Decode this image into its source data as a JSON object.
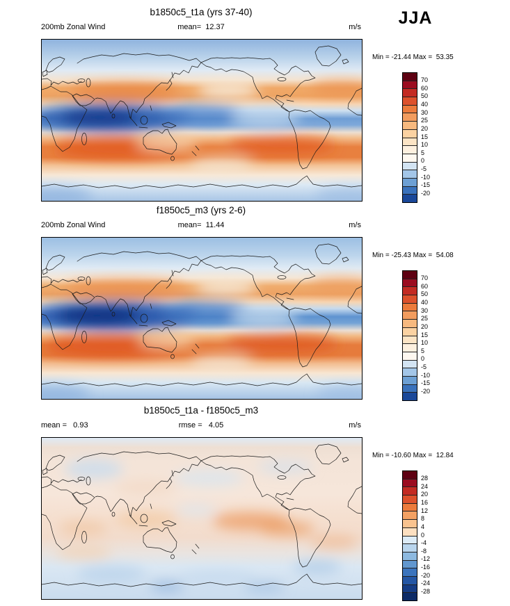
{
  "season_label": "JJA",
  "panels": [
    {
      "title": "b1850c5_t1a (yrs 37-40)",
      "left_label": "200mb Zonal Wind",
      "center_label": "mean=  12.37",
      "units": "m/s",
      "minmax": "Min = -21.44 Max =  53.35",
      "colorbar": {
        "ticks": [
          "70",
          "60",
          "50",
          "40",
          "30",
          "25",
          "20",
          "15",
          "10",
          "5",
          "0",
          "-5",
          "-10",
          "-15",
          "-20"
        ],
        "colors": [
          "#5e0012",
          "#9b0c20",
          "#c32b23",
          "#dd512c",
          "#ec7b3c",
          "#f29c5e",
          "#f7b97f",
          "#fbd2a2",
          "#fce4c5",
          "#fdf0df",
          "#fef8f0",
          "#d3e4f3",
          "#a3c6e8",
          "#6da0d4",
          "#3a72bc",
          "#1a4899"
        ]
      }
    },
    {
      "title": "f1850c5_m3 (yrs 2-6)",
      "left_label": "200mb Zonal Wind",
      "center_label": "mean=  11.44",
      "units": "m/s",
      "minmax": "Min = -25.43 Max =  54.08",
      "colorbar": {
        "ticks": [
          "70",
          "60",
          "50",
          "40",
          "30",
          "25",
          "20",
          "15",
          "10",
          "5",
          "0",
          "-5",
          "-10",
          "-15",
          "-20"
        ],
        "colors": [
          "#5e0012",
          "#9b0c20",
          "#c32b23",
          "#dd512c",
          "#ec7b3c",
          "#f29c5e",
          "#f7b97f",
          "#fbd2a2",
          "#fce4c5",
          "#fdf0df",
          "#fef8f0",
          "#d3e4f3",
          "#a3c6e8",
          "#6da0d4",
          "#3a72bc",
          "#1a4899"
        ]
      }
    },
    {
      "title": "b1850c5_t1a - f1850c5_m3",
      "left_label": "mean =   0.93",
      "center_label": "rmse =   4.05",
      "units": "m/s",
      "minmax": "Min = -10.60 Max =  12.84",
      "colorbar": {
        "ticks": [
          "28",
          "24",
          "20",
          "16",
          "12",
          "8",
          "4",
          "0",
          "-4",
          "-8",
          "-12",
          "-16",
          "-20",
          "-24",
          "-28"
        ],
        "colors": [
          "#5e0012",
          "#9b0c20",
          "#c32b23",
          "#dd512c",
          "#ec7b3c",
          "#f4a163",
          "#f9c38f",
          "#fcdfc0",
          "#dcebf6",
          "#b9d5ed",
          "#8db9e0",
          "#6197cf",
          "#3b74bd",
          "#2456a4",
          "#153c85",
          "#0c2a66"
        ]
      }
    }
  ],
  "chart_data": [
    {
      "type": "heatmap",
      "panel": "top",
      "title": "b1850c5_t1a (yrs 37-40)",
      "variable": "200mb Zonal Wind",
      "season": "JJA",
      "units": "m/s",
      "mean": 12.37,
      "min": -21.44,
      "max": 53.35,
      "contour_levels": [
        -20,
        -15,
        -10,
        -5,
        0,
        5,
        10,
        15,
        20,
        25,
        30,
        40,
        50,
        60,
        70
      ],
      "x_range_lon": [
        0,
        360
      ],
      "y_range_lat": [
        -90,
        90
      ],
      "palette": "blue-white-red diverging",
      "features": "tropical easterlies (dark blue minimum over Africa/Indian Ocean); strong southern-hemisphere winter jet (orange/red band 20S-50S, max ~53 m/s); weaker NH jet band near 30-45N"
    },
    {
      "type": "heatmap",
      "panel": "middle",
      "title": "f1850c5_m3 (yrs 2-6)",
      "variable": "200mb Zonal Wind",
      "season": "JJA",
      "units": "m/s",
      "mean": 11.44,
      "min": -25.43,
      "max": 54.08,
      "contour_levels": [
        -20,
        -15,
        -10,
        -5,
        0,
        5,
        10,
        15,
        20,
        25,
        30,
        40,
        50,
        60,
        70
      ],
      "x_range_lon": [
        0,
        360
      ],
      "y_range_lat": [
        -90,
        90
      ],
      "palette": "blue-white-red diverging",
      "features": "same pattern as top panel with stronger tropical easterly minimum over Africa/Indian Ocean"
    },
    {
      "type": "heatmap",
      "panel": "bottom",
      "title": "b1850c5_t1a - f1850c5_m3",
      "variable": "200mb Zonal Wind difference",
      "season": "JJA",
      "units": "m/s",
      "mean": 0.93,
      "rmse": 4.05,
      "min": -10.6,
      "max": 12.84,
      "contour_levels": [
        -28,
        -24,
        -20,
        -16,
        -12,
        -8,
        -4,
        0,
        4,
        8,
        12,
        16,
        20,
        24,
        28
      ],
      "x_range_lon": [
        0,
        360
      ],
      "y_range_lat": [
        -90,
        90
      ],
      "palette": "blue-white-red diverging",
      "features": "weak differences overall; light warm anomalies along equator/central Pacific, light cool anomalies at mid-high southern latitudes"
    }
  ]
}
